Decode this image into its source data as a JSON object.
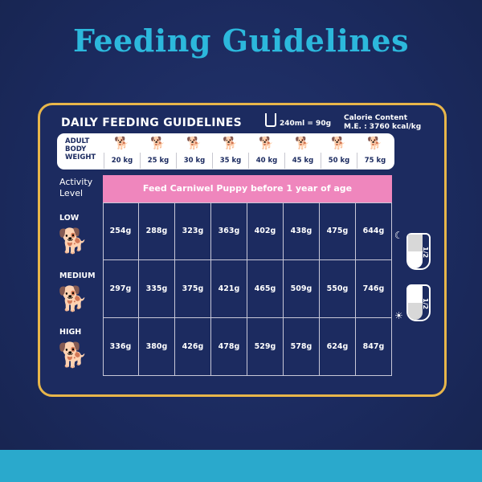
{
  "title": "Feeding Guidelines",
  "header": {
    "heading": "DAILY FEEDING GUIDELINES",
    "cup_note": "240ml = 90g",
    "calorie_label": "Calorie Content",
    "calorie_value": "M.E. : 3760 kcal/kg"
  },
  "weights": {
    "label_line1": "ADULT",
    "label_line2": "BODY",
    "label_line3": "WEIGHT",
    "values": [
      "20 kg",
      "25 kg",
      "30 kg",
      "35 kg",
      "40 kg",
      "45 kg",
      "50 kg",
      "75 kg"
    ]
  },
  "activity_label_line1": "Activity",
  "activity_label_line2": "Level",
  "banner": "Feed Carniwel Puppy before 1 year of age",
  "rows": [
    {
      "level": "LOW",
      "values": [
        "254g",
        "288g",
        "323g",
        "363g",
        "402g",
        "438g",
        "475g",
        "644g"
      ]
    },
    {
      "level": "MEDIUM",
      "values": [
        "297g",
        "335g",
        "375g",
        "421g",
        "465g",
        "509g",
        "550g",
        "746g"
      ]
    },
    {
      "level": "HIGH",
      "values": [
        "336g",
        "380g",
        "426g",
        "478g",
        "529g",
        "578g",
        "624g",
        "847g"
      ]
    }
  ],
  "bowls": {
    "night_label": "1/2",
    "day_label": "1/2"
  },
  "colors": {
    "background": "#1b2a5e",
    "title": "#2cb8dc",
    "border": "#e8b64a",
    "banner": "#ef86bd",
    "band": "#2aa9cc"
  }
}
